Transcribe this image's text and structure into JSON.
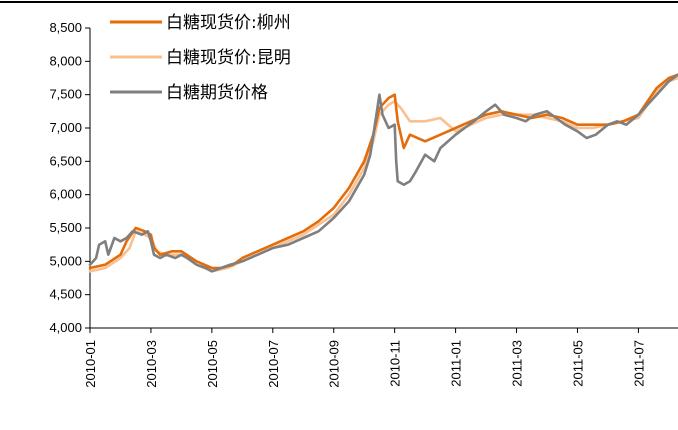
{
  "chart_data": {
    "type": "line",
    "title": "",
    "xlabel": "",
    "ylabel": "",
    "ylim": [
      4000,
      8500
    ],
    "y_ticks": [
      4000,
      4500,
      5000,
      5500,
      6000,
      6500,
      7000,
      7500,
      8000,
      8500
    ],
    "y_tick_labels": [
      "4,000",
      "4,500",
      "5,000",
      "5,500",
      "6,000",
      "6,500",
      "7,000",
      "7,500",
      "8,000",
      "8,500"
    ],
    "x_tick_labels": [
      "2010-01",
      "2010-03",
      "2010-05",
      "2010-07",
      "2010-09",
      "2010-11",
      "2011-01",
      "2011-03",
      "2011-05",
      "2011-07"
    ],
    "x_tick_months": [
      0,
      2,
      4,
      6,
      8,
      10,
      12,
      14,
      16,
      18
    ],
    "x_range_months": [
      0,
      19.3
    ],
    "grid": false,
    "legend_position": "top-left",
    "series": [
      {
        "name": "白糖现货价:柳州",
        "color": "#E46C0A",
        "points": [
          [
            0,
            4900
          ],
          [
            0.5,
            4950
          ],
          [
            1,
            5100
          ],
          [
            1.2,
            5300
          ],
          [
            1.5,
            5500
          ],
          [
            1.8,
            5450
          ],
          [
            2,
            5400
          ],
          [
            2.1,
            5200
          ],
          [
            2.3,
            5100
          ],
          [
            2.7,
            5150
          ],
          [
            3,
            5150
          ],
          [
            3.5,
            5000
          ],
          [
            4,
            4900
          ],
          [
            4.3,
            4900
          ],
          [
            4.7,
            4950
          ],
          [
            5,
            5050
          ],
          [
            5.5,
            5150
          ],
          [
            6,
            5250
          ],
          [
            6.5,
            5350
          ],
          [
            7,
            5450
          ],
          [
            7.5,
            5600
          ],
          [
            8,
            5800
          ],
          [
            8.5,
            6100
          ],
          [
            9,
            6500
          ],
          [
            9.3,
            6900
          ],
          [
            9.5,
            7300
          ],
          [
            9.8,
            7450
          ],
          [
            10,
            7500
          ],
          [
            10.1,
            7100
          ],
          [
            10.3,
            6700
          ],
          [
            10.5,
            6900
          ],
          [
            11,
            6800
          ],
          [
            11.5,
            6900
          ],
          [
            12,
            7000
          ],
          [
            12.5,
            7100
          ],
          [
            13,
            7200
          ],
          [
            13.5,
            7250
          ],
          [
            14,
            7200
          ],
          [
            14.5,
            7150
          ],
          [
            15,
            7200
          ],
          [
            15.5,
            7150
          ],
          [
            16,
            7050
          ],
          [
            16.5,
            7050
          ],
          [
            17,
            7050
          ],
          [
            17.5,
            7100
          ],
          [
            18,
            7200
          ],
          [
            18.3,
            7400
          ],
          [
            18.6,
            7600
          ],
          [
            19,
            7750
          ],
          [
            19.3,
            7800
          ]
        ]
      },
      {
        "name": "白糖现货价:昆明",
        "color": "#FAC090",
        "points": [
          [
            0,
            4850
          ],
          [
            0.5,
            4900
          ],
          [
            1,
            5050
          ],
          [
            1.3,
            5200
          ],
          [
            1.5,
            5450
          ],
          [
            1.8,
            5400
          ],
          [
            2,
            5350
          ],
          [
            2.2,
            5150
          ],
          [
            2.5,
            5100
          ],
          [
            3,
            5100
          ],
          [
            3.5,
            4950
          ],
          [
            4,
            4850
          ],
          [
            4.5,
            4900
          ],
          [
            5,
            5000
          ],
          [
            5.5,
            5100
          ],
          [
            6,
            5200
          ],
          [
            6.5,
            5300
          ],
          [
            7,
            5400
          ],
          [
            7.5,
            5550
          ],
          [
            8,
            5700
          ],
          [
            8.5,
            6000
          ],
          [
            9,
            6400
          ],
          [
            9.3,
            6800
          ],
          [
            9.5,
            7200
          ],
          [
            9.8,
            7350
          ],
          [
            10,
            7400
          ],
          [
            10.2,
            7300
          ],
          [
            10.5,
            7100
          ],
          [
            11,
            7100
          ],
          [
            11.5,
            7150
          ],
          [
            12,
            6950
          ],
          [
            12.5,
            7050
          ],
          [
            13,
            7150
          ],
          [
            13.5,
            7200
          ],
          [
            14,
            7200
          ],
          [
            14.5,
            7200
          ],
          [
            15,
            7150
          ],
          [
            15.5,
            7100
          ],
          [
            16,
            7000
          ],
          [
            16.5,
            7000
          ],
          [
            17,
            7050
          ],
          [
            17.5,
            7100
          ],
          [
            18,
            7150
          ],
          [
            18.3,
            7350
          ],
          [
            18.6,
            7550
          ],
          [
            19,
            7700
          ],
          [
            19.3,
            7750
          ]
        ]
      },
      {
        "name": "白糖期货价格",
        "color": "#7F7F7F",
        "points": [
          [
            0,
            4950
          ],
          [
            0.2,
            5050
          ],
          [
            0.3,
            5250
          ],
          [
            0.5,
            5300
          ],
          [
            0.6,
            5100
          ],
          [
            0.8,
            5350
          ],
          [
            1,
            5300
          ],
          [
            1.2,
            5350
          ],
          [
            1.4,
            5450
          ],
          [
            1.7,
            5400
          ],
          [
            1.9,
            5450
          ],
          [
            2,
            5300
          ],
          [
            2.1,
            5100
          ],
          [
            2.3,
            5050
          ],
          [
            2.5,
            5100
          ],
          [
            2.8,
            5050
          ],
          [
            3,
            5100
          ],
          [
            3.2,
            5050
          ],
          [
            3.5,
            4950
          ],
          [
            3.8,
            4900
          ],
          [
            4,
            4850
          ],
          [
            4.3,
            4900
          ],
          [
            4.6,
            4950
          ],
          [
            5,
            5000
          ],
          [
            5.5,
            5100
          ],
          [
            6,
            5200
          ],
          [
            6.5,
            5250
          ],
          [
            7,
            5350
          ],
          [
            7.5,
            5450
          ],
          [
            8,
            5650
          ],
          [
            8.5,
            5900
          ],
          [
            9,
            6300
          ],
          [
            9.2,
            6600
          ],
          [
            9.4,
            7200
          ],
          [
            9.5,
            7500
          ],
          [
            9.6,
            7200
          ],
          [
            9.8,
            7000
          ],
          [
            10,
            7050
          ],
          [
            10.05,
            6500
          ],
          [
            10.1,
            6200
          ],
          [
            10.3,
            6150
          ],
          [
            10.5,
            6200
          ],
          [
            10.7,
            6350
          ],
          [
            11,
            6600
          ],
          [
            11.3,
            6500
          ],
          [
            11.5,
            6700
          ],
          [
            12,
            6900
          ],
          [
            12.3,
            7000
          ],
          [
            12.6,
            7100
          ],
          [
            13,
            7250
          ],
          [
            13.3,
            7350
          ],
          [
            13.6,
            7200
          ],
          [
            14,
            7150
          ],
          [
            14.3,
            7100
          ],
          [
            14.6,
            7200
          ],
          [
            15,
            7250
          ],
          [
            15.3,
            7150
          ],
          [
            15.6,
            7050
          ],
          [
            16,
            6950
          ],
          [
            16.3,
            6850
          ],
          [
            16.6,
            6900
          ],
          [
            17,
            7050
          ],
          [
            17.3,
            7100
          ],
          [
            17.6,
            7050
          ],
          [
            18,
            7200
          ],
          [
            18.3,
            7350
          ],
          [
            18.6,
            7500
          ],
          [
            19,
            7700
          ],
          [
            19.3,
            7800
          ]
        ]
      }
    ]
  }
}
